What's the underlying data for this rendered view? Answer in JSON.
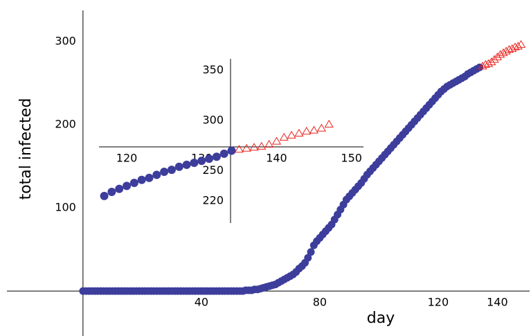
{
  "chart_data": [
    {
      "type": "scatter",
      "xlabel": "day",
      "ylabel": "total infected",
      "xlim": [
        -25.7,
        150.9
      ],
      "ylim": [
        -54,
        337.5
      ],
      "xticks": [
        40,
        80,
        120,
        140
      ],
      "yticks": [
        100,
        200,
        300
      ],
      "series": [
        {
          "color": "#3d3d9c",
          "marker": "circle",
          "x": [
            0,
            1,
            2,
            3,
            4,
            5,
            6,
            7,
            8,
            9,
            10,
            11,
            12,
            13,
            14,
            15,
            16,
            17,
            18,
            19,
            20,
            21,
            22,
            23,
            24,
            25,
            26,
            27,
            28,
            29,
            30,
            31,
            32,
            33,
            34,
            35,
            36,
            37,
            38,
            39,
            40,
            41,
            42,
            43,
            44,
            45,
            46,
            47,
            48,
            49,
            50,
            51,
            52,
            53,
            54,
            55,
            56,
            57,
            58,
            59,
            60,
            61,
            62,
            63,
            64,
            65,
            66,
            67,
            68,
            69,
            70,
            71,
            72,
            73,
            74,
            75,
            76,
            77,
            78,
            79,
            80,
            81,
            82,
            83,
            84,
            85,
            86,
            87,
            88,
            89,
            90,
            91,
            92,
            93,
            94,
            95,
            96,
            97,
            98,
            99,
            100,
            101,
            102,
            103,
            104,
            105,
            106,
            107,
            108,
            109,
            110,
            111,
            112,
            113,
            114,
            115,
            116,
            117,
            118,
            119,
            120,
            121,
            122,
            123,
            124,
            125,
            126,
            127,
            128,
            129,
            130,
            131,
            132,
            133,
            134
          ],
          "values": [
            0,
            0,
            0,
            0,
            0,
            0,
            0,
            0,
            0,
            0,
            0,
            0,
            0,
            0,
            0,
            0,
            0,
            0,
            0,
            0,
            0,
            0,
            0,
            0,
            0,
            0,
            0,
            0,
            0,
            0,
            0,
            0,
            0,
            0,
            0,
            0,
            0,
            0,
            0,
            0,
            0,
            0,
            0,
            0,
            0,
            0,
            0,
            0,
            0,
            0,
            0,
            0,
            0,
            0,
            0,
            1,
            1,
            1,
            2,
            2,
            3,
            4,
            5,
            6,
            7,
            8,
            10,
            12,
            14,
            16,
            18,
            20,
            23,
            27,
            30,
            34,
            40,
            47,
            55,
            60,
            64,
            68,
            72,
            76,
            80,
            86,
            92,
            98,
            104,
            110,
            114,
            118,
            122,
            126,
            130,
            135,
            140,
            144,
            148,
            152,
            156,
            160,
            164,
            168,
            172,
            176,
            180,
            184,
            188,
            192,
            196,
            200,
            204,
            208,
            212,
            216,
            220,
            224,
            228,
            232,
            236,
            240,
            243,
            246,
            248,
            250,
            252,
            254,
            256,
            258,
            261,
            263,
            265,
            267,
            269
          ]
        },
        {
          "color": "#e8231e",
          "marker": "triangle",
          "x": [
            135,
            136,
            137,
            138,
            139,
            140,
            141,
            142,
            143,
            144,
            145,
            146,
            147,
            148
          ],
          "values": [
            270,
            272,
            273,
            275,
            278,
            281,
            284,
            286,
            288,
            290,
            291,
            293,
            294,
            296
          ]
        }
      ]
    },
    {
      "type": "scatter",
      "xlim": [
        116.3,
        151.6
      ],
      "ylim": [
        198,
        361.4
      ],
      "xticks": [
        120,
        130,
        140,
        150
      ],
      "yticks": [
        220,
        250,
        300,
        350
      ],
      "series": [
        {
          "color": "#3d3d9c",
          "marker": "circle",
          "x": [
            117,
            118,
            119,
            120,
            121,
            122,
            123,
            124,
            125,
            126,
            127,
            128,
            129,
            130,
            131,
            132,
            133,
            134
          ],
          "values": [
            225,
            229,
            232,
            235,
            238,
            241,
            243,
            246,
            249,
            251,
            254,
            256,
            258,
            260,
            262,
            264,
            267,
            270
          ]
        },
        {
          "color": "#e8231e",
          "marker": "triangle",
          "x": [
            135,
            136,
            137,
            138,
            139,
            140,
            141,
            142,
            143,
            144,
            145,
            146,
            147
          ],
          "values": [
            271,
            272,
            273,
            274,
            276,
            279,
            283,
            285,
            287,
            289,
            290,
            292,
            296
          ]
        }
      ]
    }
  ]
}
